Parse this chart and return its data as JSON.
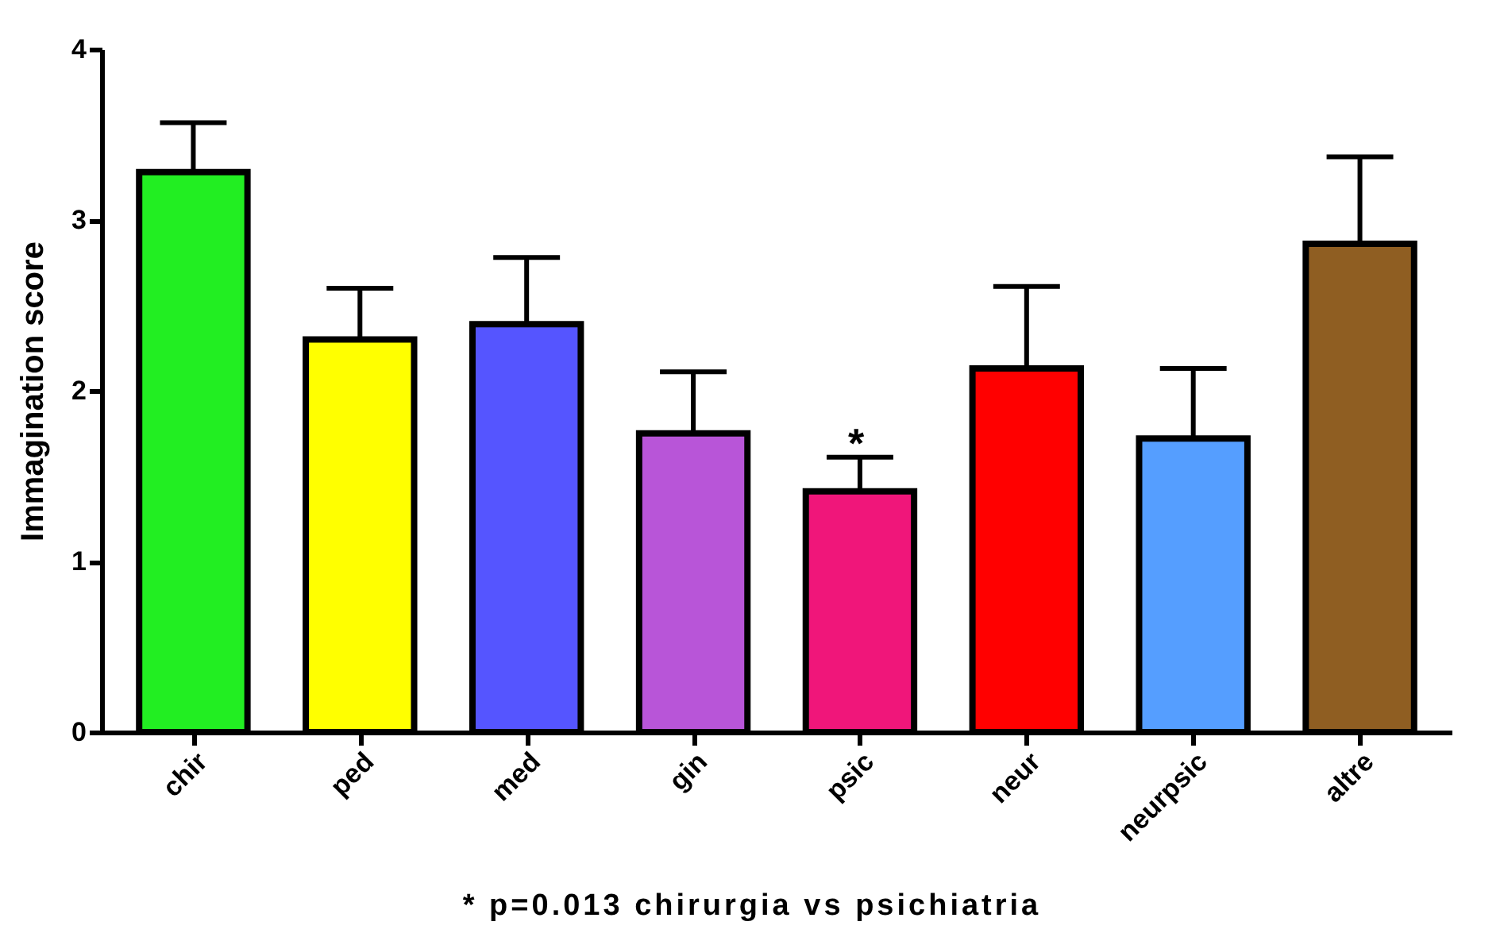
{
  "chart_data": {
    "type": "bar",
    "ylabel": "Immagination score",
    "categories": [
      "chir",
      "ped",
      "med",
      "gin",
      "psic",
      "neur",
      "neurpsic",
      "altre"
    ],
    "values": [
      3.28,
      2.3,
      2.39,
      1.75,
      1.41,
      2.13,
      1.72,
      2.86
    ],
    "colors": [
      "#22ee22",
      "#ffff00",
      "#5555ff",
      "#b855d8",
      "#f0167a",
      "#ff0000",
      "#559eff",
      "#8f5e22"
    ],
    "errors": [
      0.29,
      0.3,
      0.39,
      0.36,
      0.2,
      0.48,
      0.41,
      0.51
    ],
    "ylim": [
      0,
      4
    ],
    "yticks": [
      0,
      1,
      2,
      3,
      4
    ],
    "grid": false,
    "legend": false,
    "annotations": [
      "*",
      "* p=0.013 chirurgia vs psichiatria"
    ]
  }
}
